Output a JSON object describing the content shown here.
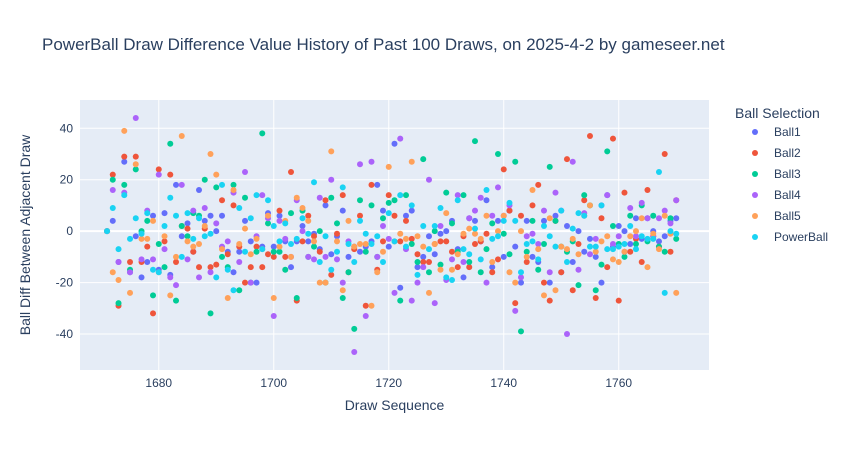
{
  "chart_data": {
    "type": "scatter",
    "title": "PowerBall Draw Difference Value History of Past 100 Draws, on 2025-4-2 by gameseer.net",
    "xlabel": "Draw Sequence",
    "ylabel": "Ball Diff Between Adjacent Draw",
    "xlim": [
      1666,
      1675.7
    ],
    "xlim_note": "",
    "ylim": [
      -54,
      51
    ],
    "x_ticks": [
      1680,
      1700,
      1720,
      1740,
      1760
    ],
    "y_ticks": [
      -40,
      -20,
      0,
      20,
      40
    ],
    "grid": true,
    "legend_position": "right",
    "legend_title": "Ball Selection",
    "x": [
      1671,
      1672,
      1673,
      1674,
      1675,
      1676,
      1677,
      1678,
      1679,
      1680,
      1681,
      1682,
      1683,
      1684,
      1685,
      1686,
      1687,
      1688,
      1689,
      1690,
      1691,
      1692,
      1693,
      1694,
      1695,
      1696,
      1697,
      1698,
      1699,
      1700,
      1701,
      1702,
      1703,
      1704,
      1705,
      1706,
      1707,
      1708,
      1709,
      1710,
      1711,
      1712,
      1713,
      1714,
      1715,
      1716,
      1717,
      1718,
      1719,
      1720,
      1721,
      1722,
      1723,
      1724,
      1725,
      1726,
      1727,
      1728,
      1729,
      1730,
      1731,
      1732,
      1733,
      1734,
      1735,
      1736,
      1737,
      1738,
      1739,
      1740,
      1741,
      1742,
      1743,
      1744,
      1745,
      1746,
      1747,
      1748,
      1749,
      1750,
      1751,
      1752,
      1753,
      1754,
      1755,
      1756,
      1757,
      1758,
      1759,
      1760,
      1761,
      1762,
      1763,
      1764,
      1765,
      1766,
      1767,
      1768,
      1769,
      1770
    ],
    "series": [
      {
        "name": "Ball1",
        "color": "#636efa",
        "values": [
          0,
          4,
          -12,
          27,
          -16,
          -2,
          -18,
          -12,
          6,
          -15,
          7,
          -17,
          18,
          -2,
          3,
          -8,
          16,
          4,
          6,
          0,
          6,
          -8,
          -16,
          -8,
          4,
          -4,
          -20,
          -6,
          7,
          -6,
          6,
          -4,
          -14,
          -4,
          2,
          -4,
          -1,
          -7,
          10,
          -9,
          -2,
          8,
          -10,
          -6,
          -8,
          -6,
          -4,
          18,
          8,
          -6,
          34,
          -22,
          6,
          8,
          -14,
          -10,
          -2,
          -9,
          -1,
          0,
          4,
          -7,
          -18,
          5,
          4,
          -4,
          12,
          -14,
          4,
          -10,
          8,
          -6,
          -20,
          4,
          -10,
          -12,
          4,
          -20,
          6,
          -16,
          2,
          -12,
          0,
          -8,
          -3,
          -10,
          -20,
          14,
          -6,
          2,
          0,
          -5,
          5,
          -3,
          5,
          0,
          -4,
          -2,
          4,
          5
        ]
      },
      {
        "name": "Ball2",
        "color": "#ef553b",
        "values": [
          0,
          22,
          -29,
          29,
          -12,
          29,
          -12,
          -6,
          -32,
          24,
          -4,
          22,
          -12,
          2,
          1,
          -8,
          -14,
          1,
          -14,
          -13,
          12,
          -9,
          10,
          -6,
          -20,
          -14,
          -6,
          -14,
          -9,
          -10,
          8,
          -10,
          23,
          -27,
          -4,
          6,
          -2,
          -8,
          12,
          -17,
          -1,
          14,
          -16,
          -7,
          6,
          -29,
          18,
          -15,
          -4,
          14,
          6,
          -4,
          4,
          -3,
          -9,
          -12,
          -12,
          -5,
          -4,
          -4,
          -8,
          -14,
          -2,
          -14,
          -5,
          -4,
          -1,
          -16,
          -11,
          24,
          8,
          -28,
          6,
          -12,
          10,
          18,
          -20,
          -27,
          4,
          -16,
          28,
          -23,
          -5,
          12,
          37,
          -26,
          5,
          -14,
          36,
          -27,
          15,
          -8,
          -3,
          -12,
          16,
          -2,
          -6,
          30,
          -8,
          12
        ]
      },
      {
        "name": "Ball3",
        "color": "#00cc96",
        "values": [
          0,
          20,
          -28,
          18,
          -15,
          24,
          0,
          4,
          -25,
          -5,
          -14,
          34,
          -27,
          2,
          -2,
          7,
          6,
          20,
          -32,
          17,
          -10,
          -14,
          18,
          -23,
          13,
          -20,
          -8,
          38,
          3,
          -8,
          -8,
          -15,
          7,
          -26,
          8,
          -10,
          -6,
          0,
          -20,
          13,
          3,
          -26,
          -16,
          -38,
          12,
          -8,
          10,
          -10,
          5,
          11,
          12,
          -27,
          14,
          -5,
          -12,
          28,
          -16,
          0,
          -13,
          15,
          3,
          -8,
          14,
          -12,
          35,
          -16,
          -7,
          3,
          30,
          -1,
          -9,
          27,
          -39,
          -8,
          4,
          -15,
          -5,
          25,
          4,
          -6,
          -8,
          -4,
          -21,
          14,
          10,
          -23,
          -13,
          31,
          2,
          -5,
          -10,
          6,
          -5,
          10,
          -4,
          6,
          -6,
          -8,
          5,
          -3
        ]
      },
      {
        "name": "Ball4",
        "color": "#ab63fa",
        "values": [
          0,
          16,
          -12,
          15,
          -16,
          44,
          -11,
          8,
          -11,
          22,
          -7,
          -18,
          -21,
          18,
          -11,
          8,
          -18,
          9,
          -16,
          3,
          -6,
          -4,
          15,
          -12,
          23,
          -20,
          -2,
          14,
          5,
          -33,
          4,
          -3,
          -10,
          12,
          0,
          -10,
          -11,
          13,
          -10,
          20,
          -11,
          -20,
          -4,
          -47,
          26,
          -33,
          27,
          -10,
          2,
          -3,
          -24,
          36,
          -7,
          -27,
          -20,
          -14,
          20,
          -28,
          2,
          -19,
          -11,
          14,
          -12,
          5,
          8,
          13,
          -20,
          6,
          17,
          6,
          10,
          -31,
          -18,
          -2,
          -1,
          -5,
          8,
          -16,
          15,
          8,
          -40,
          27,
          -15,
          7,
          -9,
          -3,
          10,
          14,
          -5,
          -2,
          -8,
          9,
          -2,
          11,
          5,
          -2,
          5,
          8,
          3,
          12
        ]
      },
      {
        "name": "Ball5",
        "color": "#ffa15a",
        "values": [
          0,
          -16,
          -19,
          39,
          -24,
          26,
          -3,
          -3,
          4,
          -16,
          -2,
          -25,
          -10,
          37,
          -4,
          -6,
          -5,
          2,
          30,
          22,
          -7,
          -26,
          16,
          -5,
          1,
          -9,
          -3,
          -7,
          6,
          -26,
          -6,
          4,
          -10,
          13,
          9,
          4,
          -4,
          -20,
          -20,
          31,
          -4,
          -23,
          4,
          -6,
          -5,
          -5,
          -29,
          -16,
          -8,
          25,
          -4,
          -1,
          -3,
          27,
          -2,
          -6,
          -24,
          -5,
          -15,
          7,
          -15,
          -9,
          -1,
          1,
          -1,
          -3,
          6,
          -12,
          0,
          6,
          -16,
          -20,
          0,
          -10,
          16,
          -7,
          -25,
          5,
          -23,
          -6,
          -7,
          -3,
          -9,
          6,
          10,
          -8,
          -4,
          -2,
          -11,
          -12,
          -8,
          -2,
          0,
          5,
          -14,
          -1,
          -7,
          6,
          -1,
          -24
        ]
      },
      {
        "name": "PowerBall",
        "color": "#19d3f3",
        "values": [
          0,
          9,
          -7,
          14,
          -3,
          5,
          -1,
          7,
          -15,
          -16,
          2,
          13,
          6,
          -10,
          7,
          -3,
          5,
          -2,
          -1,
          -18,
          18,
          -15,
          -23,
          9,
          -8,
          5,
          14,
          -7,
          12,
          2,
          -4,
          3,
          -5,
          -3,
          5,
          -1,
          19,
          -12,
          -2,
          -15,
          -8,
          17,
          -5,
          -12,
          4,
          -1,
          -5,
          -2,
          -12,
          7,
          -4,
          14,
          -6,
          10,
          -17,
          2,
          -7,
          2,
          9,
          -18,
          -19,
          12,
          -7,
          -9,
          1,
          -11,
          16,
          -3,
          -2,
          4,
          11,
          4,
          -16,
          -5,
          -4,
          -11,
          2,
          -2,
          -6,
          8,
          -12,
          1,
          7,
          6,
          -6,
          -6,
          10,
          -7,
          -7,
          -6,
          -5,
          2,
          -7,
          -2,
          -3,
          -3,
          23,
          -24,
          0,
          -1
        ]
      }
    ]
  }
}
